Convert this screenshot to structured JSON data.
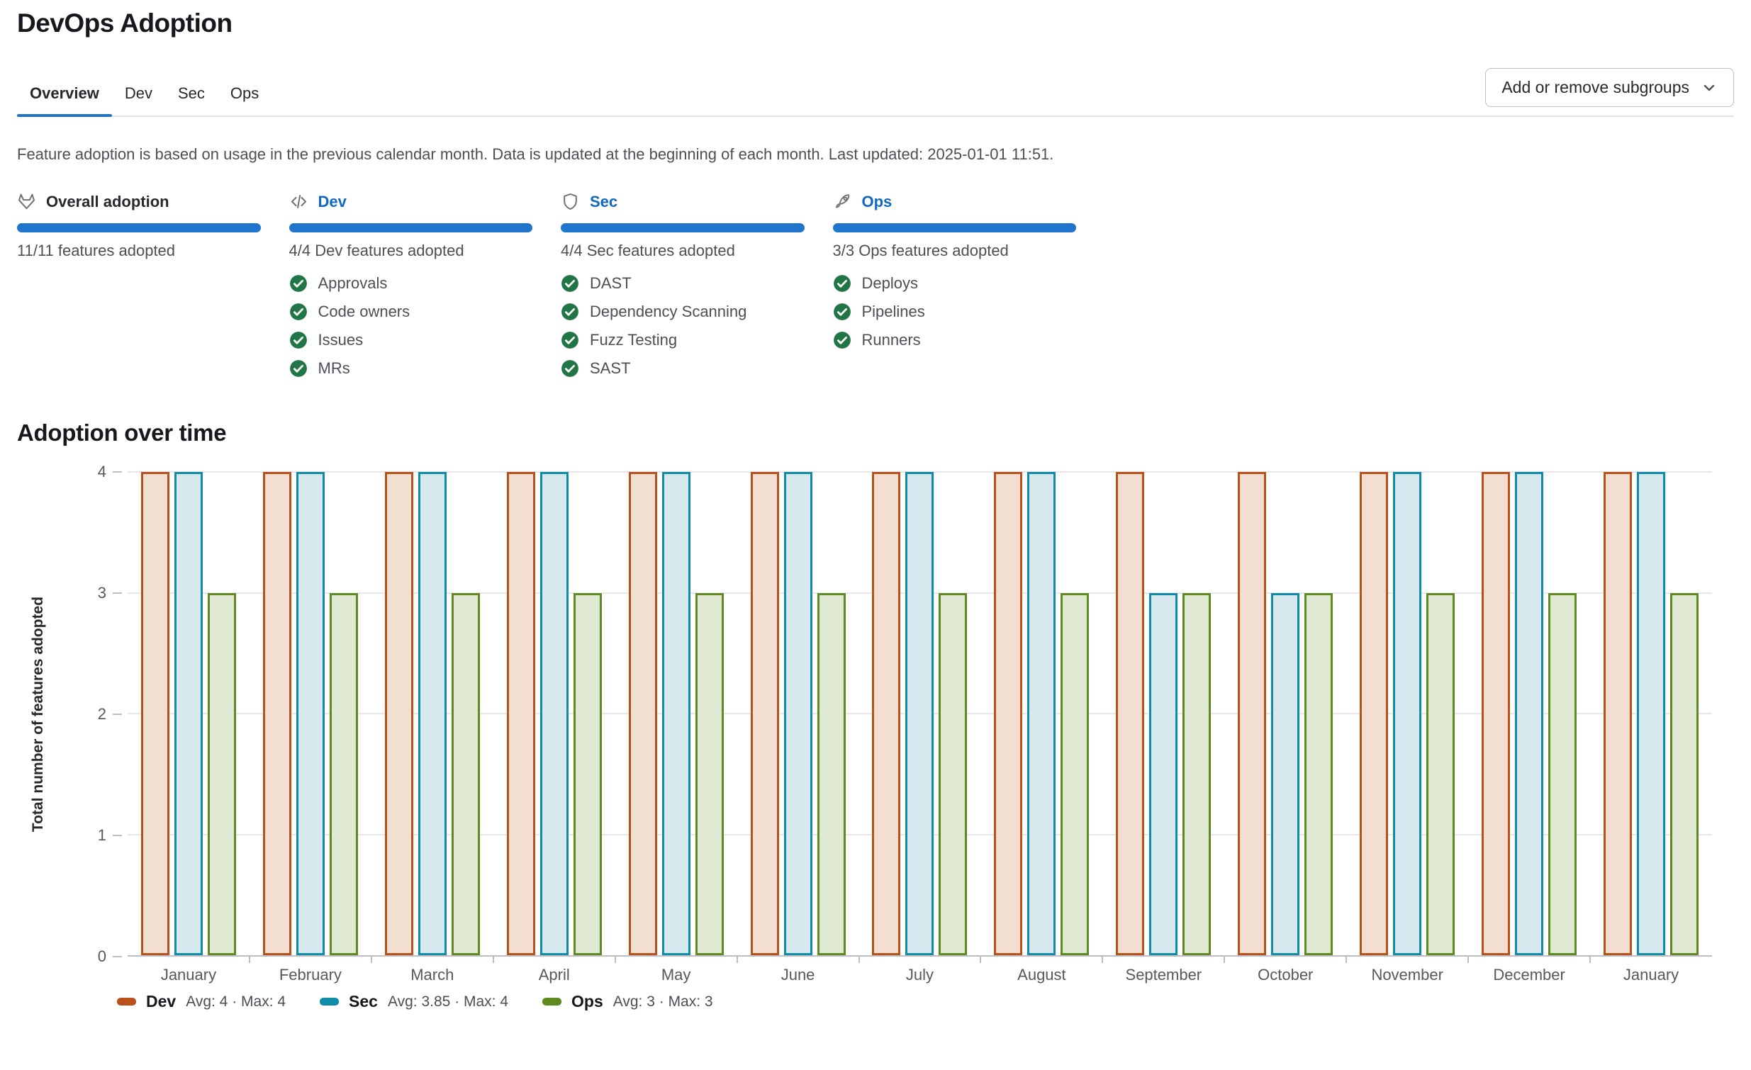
{
  "page": {
    "title": "DevOps Adoption"
  },
  "tabs": [
    {
      "label": "Overview",
      "active": true
    },
    {
      "label": "Dev",
      "active": false
    },
    {
      "label": "Sec",
      "active": false
    },
    {
      "label": "Ops",
      "active": false
    }
  ],
  "subgroups_button": {
    "label": "Add or remove subgroups"
  },
  "description": "Feature adoption is based on usage in the previous calendar month. Data is updated at the beginning of each month. Last updated: 2025-01-01 11:51.",
  "colors": {
    "link_blue": "#1068bf",
    "progress_blue": "#1f75cb",
    "tab_indicator_blue": "#1f75cb",
    "check_green": "#217645"
  },
  "cards": [
    {
      "icon": "tanuki-icon",
      "title": "Overall adoption",
      "is_link": false,
      "progress_label": "11/11 features adopted",
      "features": []
    },
    {
      "icon": "code-icon",
      "title": "Dev",
      "is_link": true,
      "progress_label": "4/4 Dev features adopted",
      "features": [
        "Approvals",
        "Code owners",
        "Issues",
        "MRs"
      ]
    },
    {
      "icon": "shield-icon",
      "title": "Sec",
      "is_link": true,
      "progress_label": "4/4 Sec features adopted",
      "features": [
        "DAST",
        "Dependency Scanning",
        "Fuzz Testing",
        "SAST"
      ]
    },
    {
      "icon": "rocket-icon",
      "title": "Ops",
      "is_link": true,
      "progress_label": "3/3 Ops features adopted",
      "features": [
        "Deploys",
        "Pipelines",
        "Runners"
      ]
    }
  ],
  "chart_data": {
    "type": "bar",
    "title": "Adoption over time",
    "ylabel": "Total number of features adopted",
    "xlabel": "",
    "categories": [
      "January",
      "February",
      "March",
      "April",
      "May",
      "June",
      "July",
      "August",
      "September",
      "October",
      "November",
      "December",
      "January"
    ],
    "series": [
      {
        "name": "Dev",
        "values": [
          4,
          4,
          4,
          4,
          4,
          4,
          4,
          4,
          4,
          4,
          4,
          4,
          4
        ],
        "stroke": "#b8511a",
        "fill": "#f3ded2",
        "legend_stats": "Avg: 4 · Max: 4"
      },
      {
        "name": "Sec",
        "values": [
          4,
          4,
          4,
          4,
          4,
          4,
          4,
          4,
          3,
          3,
          4,
          4,
          4
        ],
        "stroke": "#0f8ca8",
        "fill": "#d8e8ef",
        "legend_stats": "Avg: 3.85 · Max: 4"
      },
      {
        "name": "Ops",
        "values": [
          3,
          3,
          3,
          3,
          3,
          3,
          3,
          3,
          3,
          3,
          3,
          3,
          3
        ],
        "stroke": "#5f8a1f",
        "fill": "#dfe8d2",
        "legend_stats": "Avg: 3 · Max: 3"
      }
    ],
    "ylim": [
      0,
      4
    ],
    "yticks": [
      0,
      1,
      2,
      3,
      4
    ],
    "grid": true,
    "legend_position": "bottom"
  }
}
